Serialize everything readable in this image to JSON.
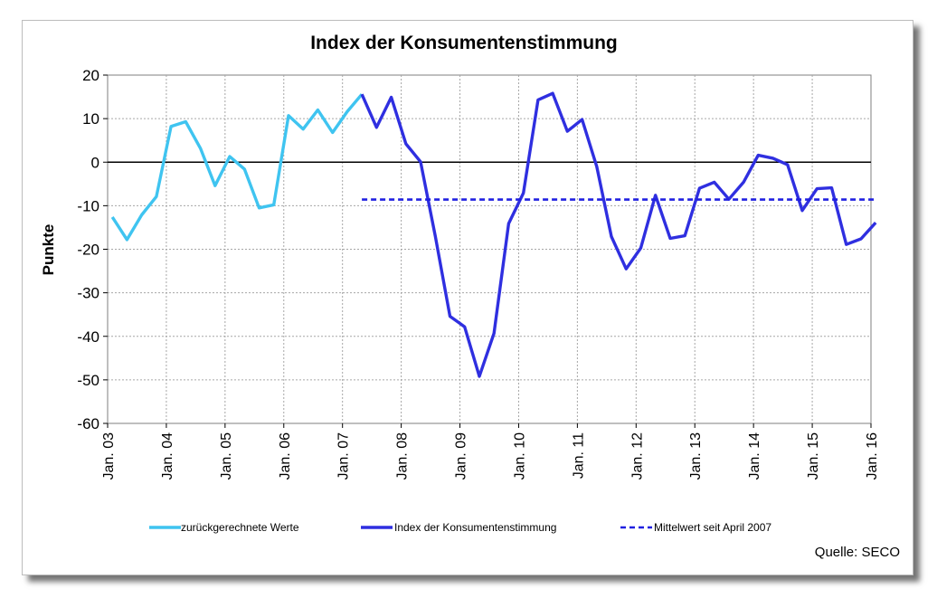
{
  "chart_data": {
    "type": "line",
    "title": "Index der Konsumentenstimmung",
    "ylabel": "Punkte",
    "xlabel": "",
    "ylim": [
      -60,
      20
    ],
    "yticks": [
      20,
      10,
      0,
      -10,
      -20,
      -30,
      -40,
      -50,
      -60
    ],
    "x_range": [
      2003.0,
      2016.0
    ],
    "xticks": [
      {
        "x": 2003,
        "label": "Jan. 03"
      },
      {
        "x": 2004,
        "label": "Jan. 04"
      },
      {
        "x": 2005,
        "label": "Jan. 05"
      },
      {
        "x": 2006,
        "label": "Jan. 06"
      },
      {
        "x": 2007,
        "label": "Jan. 07"
      },
      {
        "x": 2008,
        "label": "Jan. 08"
      },
      {
        "x": 2009,
        "label": "Jan. 09"
      },
      {
        "x": 2010,
        "label": "Jan. 10"
      },
      {
        "x": 2011,
        "label": "Jan. 11"
      },
      {
        "x": 2012,
        "label": "Jan. 12"
      },
      {
        "x": 2013,
        "label": "Jan. 13"
      },
      {
        "x": 2014,
        "label": "Jan. 14"
      },
      {
        "x": 2015,
        "label": "Jan. 15"
      },
      {
        "x": 2016,
        "label": "Jan. 16"
      }
    ],
    "grid": true,
    "legend_position": "bottom",
    "source": "Quelle: SECO",
    "series": [
      {
        "name": "zurückgerechnete Werte",
        "color": "#3fc4f0",
        "dash": "solid",
        "points": [
          [
            2003.08,
            -12.6
          ],
          [
            2003.33,
            -17.8
          ],
          [
            2003.58,
            -12.1
          ],
          [
            2003.83,
            -7.9
          ],
          [
            2004.08,
            8.2
          ],
          [
            2004.33,
            9.3
          ],
          [
            2004.58,
            3.2
          ],
          [
            2004.83,
            -5.4
          ],
          [
            2005.08,
            1.3
          ],
          [
            2005.33,
            -1.6
          ],
          [
            2005.58,
            -10.5
          ],
          [
            2005.83,
            -9.8
          ],
          [
            2006.08,
            10.7
          ],
          [
            2006.33,
            7.6
          ],
          [
            2006.58,
            12.0
          ],
          [
            2006.83,
            6.8
          ],
          [
            2007.08,
            11.6
          ],
          [
            2007.33,
            15.6
          ]
        ]
      },
      {
        "name": "Index der Konsumentenstimmung",
        "color": "#2f2fe0",
        "dash": "solid",
        "points": [
          [
            2007.33,
            15.6
          ],
          [
            2007.58,
            8.0
          ],
          [
            2007.83,
            14.9
          ],
          [
            2008.08,
            4.2
          ],
          [
            2008.33,
            0.1
          ],
          [
            2008.58,
            -17.0
          ],
          [
            2008.83,
            -35.4
          ],
          [
            2009.08,
            -37.8
          ],
          [
            2009.33,
            -49.2
          ],
          [
            2009.58,
            -39.3
          ],
          [
            2009.83,
            -14.1
          ],
          [
            2010.08,
            -7.1
          ],
          [
            2010.33,
            14.3
          ],
          [
            2010.58,
            15.8
          ],
          [
            2010.83,
            7.1
          ],
          [
            2011.08,
            9.8
          ],
          [
            2011.33,
            -1.0
          ],
          [
            2011.58,
            -17.1
          ],
          [
            2011.83,
            -24.5
          ],
          [
            2012.08,
            -19.7
          ],
          [
            2012.33,
            -7.6
          ],
          [
            2012.58,
            -17.5
          ],
          [
            2012.83,
            -16.9
          ],
          [
            2013.08,
            -6.0
          ],
          [
            2013.33,
            -4.6
          ],
          [
            2013.58,
            -8.5
          ],
          [
            2013.83,
            -4.6
          ],
          [
            2014.08,
            1.6
          ],
          [
            2014.33,
            0.9
          ],
          [
            2014.58,
            -0.6
          ],
          [
            2014.83,
            -11.1
          ],
          [
            2015.08,
            -6.1
          ],
          [
            2015.33,
            -5.9
          ],
          [
            2015.58,
            -18.9
          ],
          [
            2015.83,
            -17.6
          ],
          [
            2016.08,
            -13.9
          ]
        ]
      },
      {
        "name": "Mittelwert seit April 2007",
        "color": "#2020e0",
        "dash": "dashed",
        "points": [
          [
            2007.33,
            -8.6
          ],
          [
            2016.08,
            -8.6
          ]
        ]
      }
    ]
  }
}
